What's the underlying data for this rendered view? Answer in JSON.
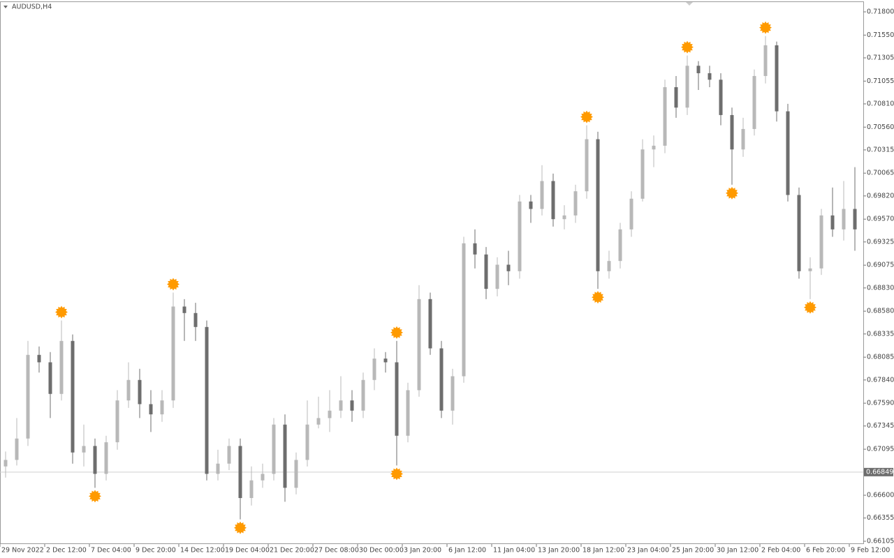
{
  "chart_data": {
    "type": "candlestick",
    "title": "AUDUSD,H4",
    "categories": [
      "29 Nov 2022",
      null,
      null,
      null,
      "2 Dec 12:00",
      null,
      null,
      null,
      "7 Dec 04:00",
      null,
      null,
      null,
      "9 Dec 20:00",
      null,
      null,
      null,
      "14 Dec 12:00",
      null,
      null,
      null,
      "19 Dec 04:00",
      null,
      null,
      null,
      "21 Dec 20:00",
      null,
      null,
      null,
      "27 Dec 08:00",
      null,
      null,
      null,
      "30 Dec 00:00",
      null,
      null,
      null,
      "3 Jan 20:00",
      null,
      null,
      null,
      "6 Jan 12:00",
      null,
      null,
      null,
      "11 Jan 04:00",
      null,
      null,
      null,
      "13 Jan 20:00",
      null,
      null,
      null,
      "18 Jan 12:00",
      null,
      null,
      null,
      "23 Jan 04:00",
      null,
      null,
      null,
      "25 Jan 20:00",
      null,
      null,
      null,
      "30 Jan 12:00",
      null,
      null,
      null,
      "2 Feb 04:00",
      null,
      null,
      null,
      "6 Feb 20:00",
      null,
      null,
      null,
      "9 Feb 12:00"
    ],
    "open": [
      0.6691,
      0.6698,
      0.6721,
      0.6811,
      0.6803,
      0.6769,
      0.6826,
      0.6706,
      0.6713,
      0.6683,
      0.6717,
      0.6762,
      0.6784,
      0.6758,
      0.6747,
      0.6762,
      0.6863,
      0.6856,
      0.6841,
      0.6683,
      0.6694,
      0.6713,
      0.6657,
      0.6676,
      0.6683,
      0.6736,
      0.6668,
      0.6698,
      0.6736,
      0.6743,
      0.6751,
      0.6762,
      0.6751,
      0.6784,
      0.6807,
      0.6803,
      0.6724,
      0.6773,
      0.6871,
      0.6818,
      0.6751,
      0.6788,
      0.6931,
      0.6919,
      0.6882,
      0.6908,
      0.6901,
      0.6976,
      0.6968,
      0.6998,
      0.6957,
      0.6961,
      0.6987,
      0.7043,
      0.6901,
      0.6912,
      0.6946,
      0.6979,
      0.7032,
      0.7036,
      0.7099,
      0.7077,
      0.7122,
      0.7114,
      0.7107,
      0.7069,
      0.7032,
      0.7054,
      0.7111,
      0.7144,
      0.7073,
      0.6983,
      0.6901,
      0.6904,
      0.6961,
      0.6946,
      0.6968
    ],
    "high": [
      0.6707,
      0.6743,
      0.6826,
      0.682,
      0.6814,
      0.6848,
      0.6833,
      0.6736,
      0.6721,
      0.6724,
      0.6773,
      0.6803,
      0.6796,
      0.6773,
      0.6773,
      0.6878,
      0.6871,
      0.6867,
      0.6848,
      0.6709,
      0.6721,
      0.6721,
      0.6691,
      0.6694,
      0.6743,
      0.6747,
      0.6706,
      0.6762,
      0.6766,
      0.6773,
      0.6788,
      0.6773,
      0.6792,
      0.6818,
      0.6814,
      0.6826,
      0.6781,
      0.6886,
      0.6878,
      0.6826,
      0.6796,
      0.6938,
      0.6946,
      0.6927,
      0.6916,
      0.6923,
      0.6983,
      0.6983,
      0.7015,
      0.7006,
      0.6972,
      0.6994,
      0.7058,
      0.7051,
      0.6923,
      0.6953,
      0.6987,
      0.7043,
      0.7047,
      0.7107,
      0.7111,
      0.7133,
      0.7127,
      0.7122,
      0.7114,
      0.7077,
      0.7066,
      0.7118,
      0.7154,
      0.7148,
      0.7081,
      0.6991,
      0.6916,
      0.6968,
      0.6991,
      0.6998,
      0.7013
    ],
    "low": [
      0.6679,
      0.6692,
      0.6713,
      0.6792,
      0.6743,
      0.6762,
      0.6694,
      0.6691,
      0.6668,
      0.6676,
      0.6709,
      0.6754,
      0.6743,
      0.6728,
      0.6739,
      0.6754,
      0.6826,
      0.6826,
      0.6676,
      0.6676,
      0.6687,
      0.6634,
      0.6649,
      0.6668,
      0.6676,
      0.6653,
      0.6661,
      0.6691,
      0.6732,
      0.6728,
      0.6743,
      0.6739,
      0.6743,
      0.6773,
      0.6792,
      0.6692,
      0.6717,
      0.6766,
      0.6811,
      0.6743,
      0.6736,
      0.6781,
      0.6904,
      0.6871,
      0.6874,
      0.6886,
      0.6893,
      0.6953,
      0.6961,
      0.6949,
      0.6946,
      0.6953,
      0.6979,
      0.6882,
      0.6893,
      0.6904,
      0.6938,
      0.6976,
      0.7013,
      0.7028,
      0.7066,
      0.7069,
      0.7096,
      0.7099,
      0.7058,
      0.6994,
      0.7024,
      0.7047,
      0.7103,
      0.7062,
      0.6976,
      0.6893,
      0.6871,
      0.6897,
      0.6938,
      0.6934,
      0.6923
    ],
    "close": [
      0.6698,
      0.6721,
      0.6811,
      0.6803,
      0.6769,
      0.6826,
      0.6706,
      0.6713,
      0.6683,
      0.6717,
      0.6762,
      0.6784,
      0.6758,
      0.6747,
      0.6762,
      0.6863,
      0.6856,
      0.6841,
      0.6683,
      0.6694,
      0.6713,
      0.6657,
      0.6676,
      0.6683,
      0.6736,
      0.6668,
      0.6698,
      0.6736,
      0.6743,
      0.6751,
      0.6762,
      0.6751,
      0.6784,
      0.6807,
      0.6803,
      0.6724,
      0.6773,
      0.6871,
      0.6818,
      0.6751,
      0.6788,
      0.6931,
      0.6919,
      0.6882,
      0.6908,
      0.6901,
      0.6976,
      0.6968,
      0.6998,
      0.6957,
      0.6961,
      0.6987,
      0.7043,
      0.6901,
      0.6912,
      0.6946,
      0.6979,
      0.7032,
      0.7036,
      0.7099,
      0.7077,
      0.7122,
      0.7114,
      0.7107,
      0.7069,
      0.7032,
      0.7054,
      0.7111,
      0.7144,
      0.7073,
      0.6983,
      0.6901,
      0.6904,
      0.6961,
      0.6946,
      0.6968,
      0.6946
    ],
    "up_fractals": [
      null,
      null,
      null,
      null,
      null,
      0.6848,
      null,
      null,
      null,
      null,
      null,
      null,
      null,
      null,
      null,
      0.6878,
      null,
      null,
      null,
      null,
      null,
      null,
      null,
      null,
      null,
      null,
      null,
      null,
      null,
      null,
      null,
      null,
      null,
      null,
      null,
      0.6826,
      null,
      null,
      null,
      null,
      null,
      null,
      null,
      null,
      null,
      null,
      null,
      null,
      null,
      null,
      null,
      null,
      0.7058,
      null,
      null,
      null,
      null,
      null,
      null,
      null,
      null,
      0.7133,
      null,
      null,
      null,
      null,
      null,
      null,
      0.7154,
      null,
      null,
      null,
      null,
      null,
      null,
      null,
      null
    ],
    "down_fractals": [
      null,
      null,
      null,
      null,
      null,
      null,
      null,
      null,
      0.6668,
      null,
      null,
      null,
      null,
      null,
      null,
      null,
      null,
      null,
      null,
      null,
      null,
      0.6634,
      null,
      null,
      null,
      null,
      null,
      null,
      null,
      null,
      null,
      null,
      null,
      null,
      null,
      0.6692,
      null,
      null,
      null,
      null,
      null,
      null,
      null,
      null,
      null,
      null,
      null,
      null,
      null,
      null,
      null,
      null,
      null,
      0.6882,
      null,
      null,
      null,
      null,
      null,
      null,
      null,
      null,
      null,
      null,
      null,
      0.6994,
      null,
      null,
      null,
      null,
      null,
      null,
      0.6871,
      null,
      null,
      null,
      null
    ],
    "current_price": 0.66849,
    "up_color": "#b8b8b8",
    "down_color": "#6e6e6e",
    "fractal_color": "#ff9a00",
    "ylim": [
      0.66075,
      0.71905
    ],
    "yticks": [
      {
        "value": 0.718,
        "label": "0.71800"
      },
      {
        "value": 0.7155,
        "label": "0.71550"
      },
      0.71305,
      0.71055,
      {
        "value": 0.7081,
        "label": "0.70810"
      },
      {
        "value": 0.7056,
        "label": "0.70560"
      },
      0.70315,
      0.70065,
      {
        "value": 0.6982,
        "label": "0.69820"
      },
      {
        "value": 0.6957,
        "label": "0.69570"
      },
      0.69325,
      0.69075,
      {
        "value": 0.6883,
        "label": "0.68830"
      },
      {
        "value": 0.6858,
        "label": "0.68580"
      },
      0.68335,
      0.68085,
      {
        "value": 0.6784,
        "label": "0.67840"
      },
      {
        "value": 0.6759,
        "label": "0.67590"
      },
      0.67345,
      0.67095,
      {
        "value": 0.666,
        "label": "0.66600"
      },
      0.66355,
      0.66105
    ]
  }
}
